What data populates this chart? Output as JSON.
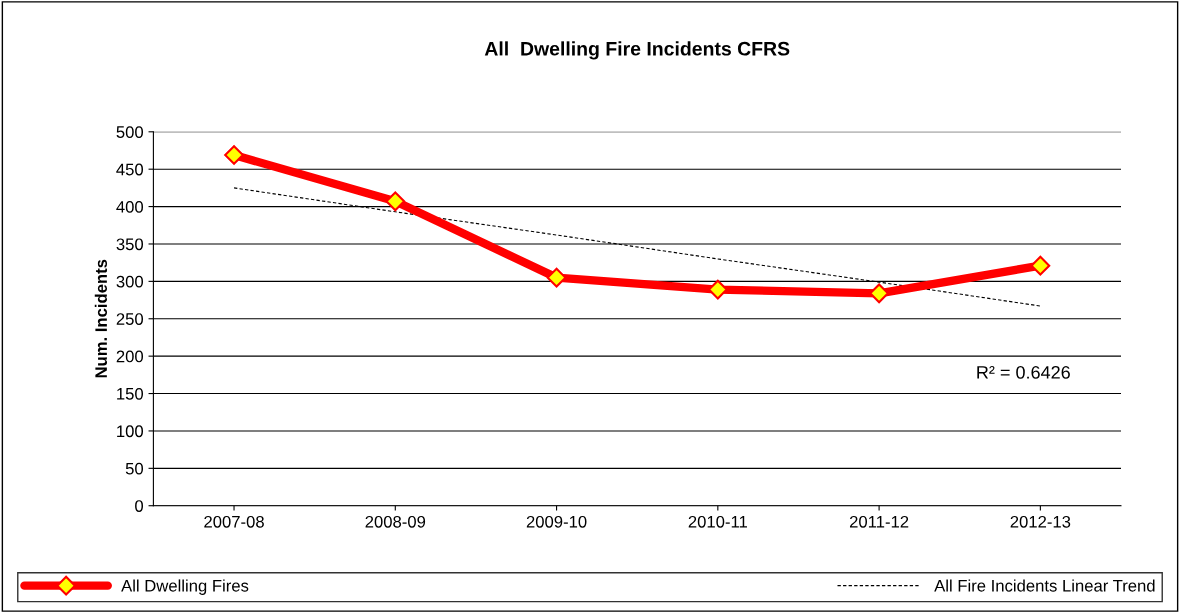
{
  "chart_data": {
    "type": "line",
    "title": "All  Dwelling Fire Incidents CFRS",
    "ylabel": "Num. Incidents",
    "categories": [
      "2007-08",
      "2008-09",
      "2009-10",
      "2010-11",
      "2011-12",
      "2012-13"
    ],
    "series": [
      {
        "name": "All Dwelling Fires",
        "color": "#ff0000",
        "values": [
          469,
          407,
          305,
          289,
          284,
          321
        ],
        "marker": "diamond",
        "line_style": "solid"
      },
      {
        "name": "All Fire Incidents Linear Trend",
        "color": "#000000",
        "values": [
          425,
          393,
          362,
          330,
          299,
          267
        ],
        "marker": "none",
        "line_style": "dashed"
      }
    ],
    "annotations": [
      "R² = 0.6426"
    ],
    "ylim": [
      0,
      500
    ],
    "yticks": [
      0,
      50,
      100,
      150,
      200,
      250,
      300,
      350,
      400,
      450,
      500
    ],
    "grid": "y",
    "legend": "bottom"
  }
}
